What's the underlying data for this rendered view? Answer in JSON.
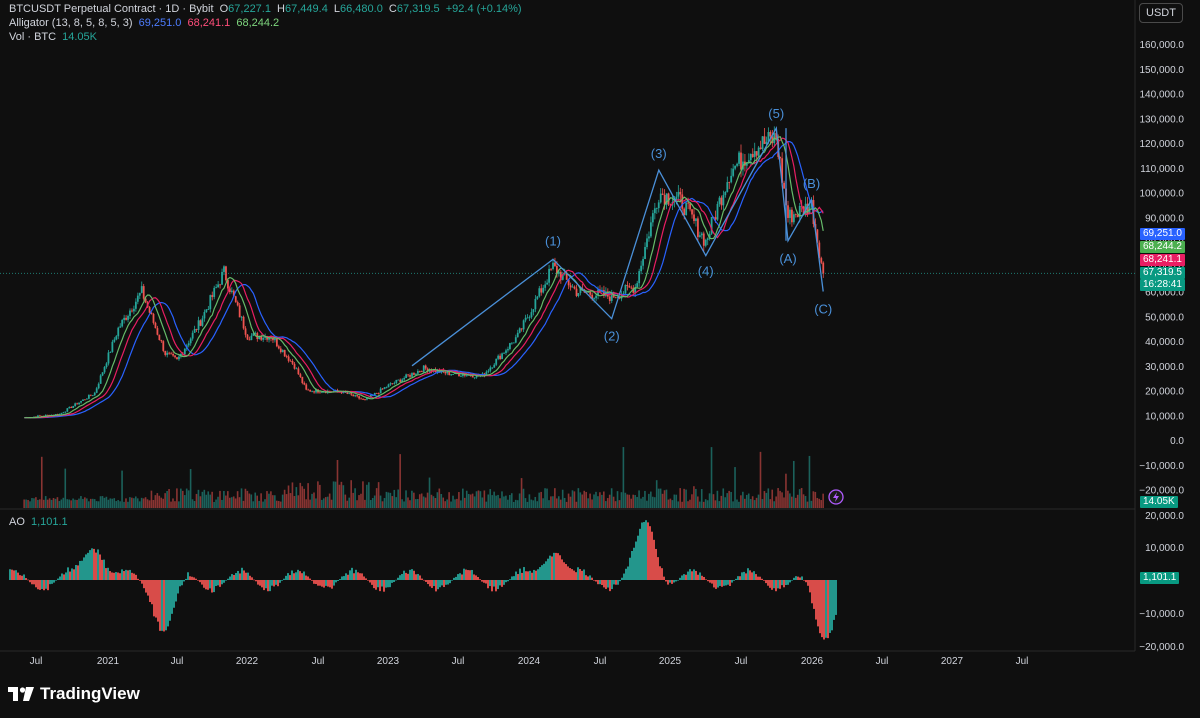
{
  "header": {
    "symbol": "BTCUSDT Perpetual Contract",
    "interval": "1D",
    "exchange": "Bybit",
    "ohlc": {
      "o_label": "O",
      "o": "67,227.1",
      "h_label": "H",
      "h": "67,449.4",
      "l_label": "L",
      "l": "66,480.0",
      "c_label": "C",
      "c": "67,319.5",
      "change": "+92.4 (+0.14%)"
    },
    "alligator": {
      "label": "Alligator (13, 8, 5, 8, 5, 3)",
      "jaw": "69,251.0",
      "teeth": "68,241.1",
      "lips": "68,244.2"
    },
    "volume": {
      "label": "Vol · BTC",
      "value": "14.05K"
    },
    "ao": {
      "label": "AO",
      "value": "1,101.1"
    }
  },
  "toolbar": {
    "currency": "USDT"
  },
  "price_scale": {
    "ticks": [
      "160,000.0",
      "150,000.0",
      "140,000.0",
      "130,000.0",
      "120,000.0",
      "110,000.0",
      "100,000.0",
      "90,000.0",
      "80,000.0",
      "70,000.0",
      "60,000.0",
      "50,000.0",
      "40,000.0",
      "30,000.0",
      "20,000.0",
      "10,000.0",
      "0.0",
      "−10,000.0",
      "−20,000.0"
    ],
    "tags": {
      "jaw": "69,251.0",
      "lips": "68,244.2",
      "teeth": "68,241.1",
      "last": "67,319.5",
      "countdown": "16:28:41",
      "volume": "14.05K"
    }
  },
  "ao_scale": {
    "ticks": [
      "20,000.0",
      "10,000.0",
      "1,101.1",
      "−10,000.0",
      "−20,000.0"
    ],
    "tag": "1,101.1"
  },
  "time_axis": {
    "labels": [
      "Jul",
      "2021",
      "Jul",
      "2022",
      "Jul",
      "2023",
      "Jul",
      "2024",
      "Jul",
      "2025",
      "Jul",
      "2026",
      "Jul",
      "2027",
      "Jul"
    ]
  },
  "wave_labels": [
    "(1)",
    "(2)",
    "(3)",
    "(4)",
    "(5)",
    "(A)",
    "(B)",
    "(C)"
  ],
  "brand": "TradingView",
  "colors": {
    "up": "#26a69a",
    "down": "#ef5350",
    "wave": "#4a90d9",
    "jaw": "#2962ff",
    "teeth": "#e91e63",
    "lips": "#66bb6a",
    "background": "#0f0f0f"
  },
  "chart_data": {
    "type": "line",
    "title": "BTCUSDT Perpetual Contract · 1D · Bybit",
    "y_unit": "USDT",
    "series": [
      {
        "name": "Price",
        "x": [
          "2020-06",
          "2020-09",
          "2020-12",
          "2021-02",
          "2021-04",
          "2021-06",
          "2021-07",
          "2021-09",
          "2021-11",
          "2022-01",
          "2022-03",
          "2022-05",
          "2022-06",
          "2022-09",
          "2022-11",
          "2023-01",
          "2023-04",
          "2023-06",
          "2023-09",
          "2023-12",
          "2024-03",
          "2024-05",
          "2024-08",
          "2024-10",
          "2024-12",
          "2025-02",
          "2025-04",
          "2025-06",
          "2025-08",
          "2025-10",
          "2025-11",
          "2026-01",
          "2026-02"
        ],
        "values": [
          9000,
          10500,
          19000,
          45000,
          60000,
          35000,
          32000,
          48000,
          68000,
          42000,
          42000,
          30000,
          20000,
          19500,
          16000,
          22000,
          29000,
          27000,
          26000,
          42000,
          70000,
          60000,
          58000,
          62000,
          100000,
          96000,
          80000,
          108000,
          118000,
          122000,
          90000,
          95000,
          67319.5
        ]
      }
    ],
    "elliott_waves": [
      {
        "label": "(1)",
        "x": "2024-03",
        "y": 73000
      },
      {
        "label": "(2)",
        "x": "2024-08",
        "y": 49000
      },
      {
        "label": "(3)",
        "x": "2024-12",
        "y": 109000
      },
      {
        "label": "(4)",
        "x": "2025-04",
        "y": 74500
      },
      {
        "label": "(5)",
        "x": "2025-10",
        "y": 126000
      },
      {
        "label": "(A)",
        "x": "2025-11",
        "y": 80500
      },
      {
        "label": "(B)",
        "x": "2026-01",
        "y": 97000
      },
      {
        "label": "(C)",
        "x": "2026-02",
        "y": 60000
      }
    ],
    "alligator_latest": {
      "jaw": 69251.0,
      "teeth": 68241.1,
      "lips": 68244.2
    },
    "volume_latest": "14.05K",
    "ao_latest": 1101.1,
    "ao_extremes": [
      {
        "x": "2020-12",
        "y": 12000
      },
      {
        "x": "2021-06",
        "y": -14000
      },
      {
        "x": "2024-03",
        "y": 11000
      },
      {
        "x": "2024-11",
        "y": 17000
      },
      {
        "x": "2026-02",
        "y": -17000
      }
    ],
    "ylim": [
      -20000,
      160000
    ],
    "ao_ylim": [
      -20000,
      20000
    ],
    "grid": false,
    "legend": "top-left"
  }
}
